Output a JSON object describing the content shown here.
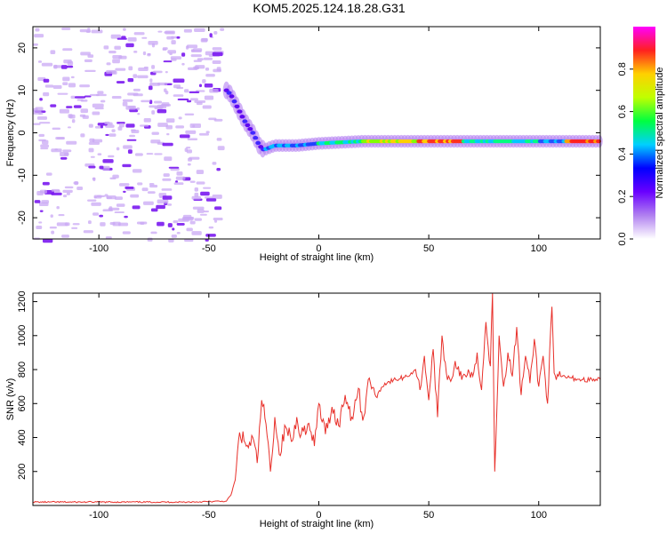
{
  "title": "KOM5.2025.124.18.28.G31",
  "chart_data": [
    {
      "type": "heatmap",
      "xlabel": "Height of straight line (km)",
      "ylabel": "Frequency (Hz)",
      "xlim": [
        -130,
        128
      ],
      "ylim": [
        -25,
        25
      ],
      "xticks": [
        -100,
        -50,
        0,
        50,
        100
      ],
      "yticks": [
        -20,
        -10,
        0,
        10,
        20
      ],
      "colorbar": {
        "label": "Normalized spectral amplitude",
        "range": [
          0,
          1
        ],
        "ticks": [
          0.0,
          0.2,
          0.4,
          0.6,
          0.8
        ],
        "colormap": [
          "#ffffff",
          "#b080f0",
          "#6a00ff",
          "#0000ff",
          "#00d0ff",
          "#00ff40",
          "#c0ff00",
          "#ffd000",
          "#ff2020",
          "#ff00ff"
        ]
      },
      "ridge": {
        "x": [
          -42,
          -40,
          -37,
          -34,
          -30,
          -27,
          -25,
          -20,
          -10,
          0,
          20,
          40,
          60,
          80,
          100,
          110,
          128
        ],
        "y": [
          10,
          9,
          6,
          3,
          0,
          -3,
          -4,
          -3,
          -3,
          -2.5,
          -2,
          -2,
          -2,
          -2,
          -2,
          -2,
          -2
        ]
      },
      "noise_region_x": [
        -130,
        -45
      ]
    },
    {
      "type": "line",
      "xlabel": "Height of straight line (km)",
      "ylabel": "SNR (v/v)",
      "xlim": [
        -130,
        128
      ],
      "ylim": [
        0,
        1250
      ],
      "xticks": [
        -100,
        -50,
        0,
        50,
        100
      ],
      "yticks": [
        200,
        400,
        600,
        800,
        1000,
        1200
      ],
      "color": "#e8302a",
      "series": [
        {
          "x": [
            -130,
            -100,
            -60,
            -42,
            -40,
            -38,
            -36,
            -34,
            -32,
            -30,
            -28,
            -26,
            -24,
            -22,
            -20,
            -18,
            -15,
            -12,
            -10,
            -8,
            -5,
            -2,
            0,
            3,
            6,
            9,
            12,
            15,
            18,
            20,
            23,
            26,
            30,
            35,
            40,
            44,
            46,
            48,
            50,
            52,
            54,
            56,
            58,
            60,
            62,
            65,
            68,
            70,
            72,
            74,
            76,
            78,
            79,
            80,
            82,
            84,
            86,
            88,
            90,
            92,
            94,
            96,
            98,
            100,
            102,
            104,
            106,
            107,
            108,
            110,
            115,
            120,
            128
          ],
          "y": [
            20,
            20,
            20,
            25,
            60,
            150,
            430,
            380,
            340,
            400,
            250,
            620,
            480,
            200,
            520,
            300,
            460,
            380,
            520,
            420,
            480,
            350,
            600,
            420,
            580,
            470,
            650,
            520,
            690,
            500,
            750,
            640,
            720,
            740,
            760,
            800,
            680,
            880,
            620,
            920,
            520,
            1000,
            780,
            730,
            850,
            740,
            800,
            760,
            900,
            680,
            1080,
            820,
            1250,
            200,
            1000,
            700,
            900,
            760,
            1050,
            650,
            880,
            720,
            980,
            700,
            880,
            600,
            1170,
            780,
            740,
            760,
            750,
            740,
            740
          ]
        }
      ]
    }
  ]
}
